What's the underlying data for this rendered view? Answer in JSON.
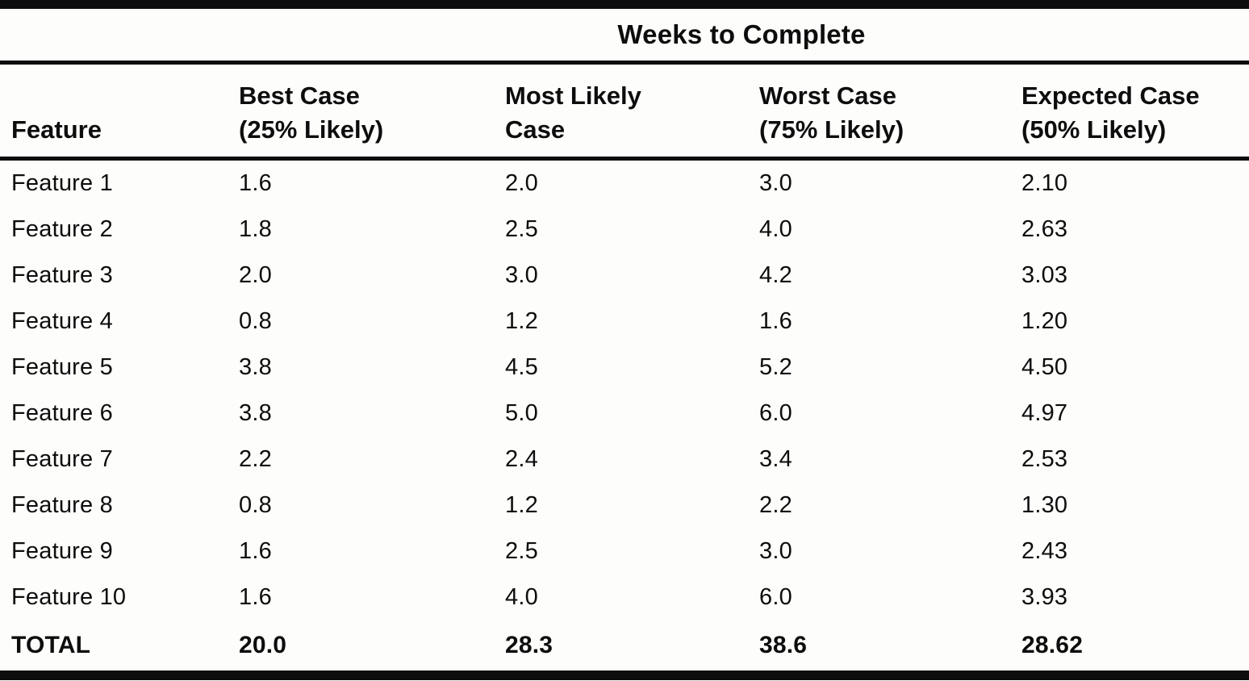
{
  "colors": {
    "ink": "#0d0d0d",
    "paper": "#fdfdfb"
  },
  "table": {
    "spanner_header": "Weeks to Complete",
    "columns": [
      {
        "label": "Feature",
        "sublabel": ""
      },
      {
        "label": "Best Case",
        "sublabel": "(25% Likely)"
      },
      {
        "label": "Most Likely",
        "sublabel": "Case"
      },
      {
        "label": "Worst Case",
        "sublabel": "(75% Likely)"
      },
      {
        "label": "Expected Case",
        "sublabel": "(50% Likely)"
      }
    ],
    "rows": [
      {
        "feature": "Feature 1",
        "best_case": "1.6",
        "most_likely": "2.0",
        "worst_case": "3.0",
        "expected": "2.10"
      },
      {
        "feature": "Feature 2",
        "best_case": "1.8",
        "most_likely": "2.5",
        "worst_case": "4.0",
        "expected": "2.63"
      },
      {
        "feature": "Feature 3",
        "best_case": "2.0",
        "most_likely": "3.0",
        "worst_case": "4.2",
        "expected": "3.03"
      },
      {
        "feature": "Feature 4",
        "best_case": "0.8",
        "most_likely": "1.2",
        "worst_case": "1.6",
        "expected": "1.20"
      },
      {
        "feature": "Feature 5",
        "best_case": "3.8",
        "most_likely": "4.5",
        "worst_case": "5.2",
        "expected": "4.50"
      },
      {
        "feature": "Feature 6",
        "best_case": "3.8",
        "most_likely": "5.0",
        "worst_case": "6.0",
        "expected": "4.97"
      },
      {
        "feature": "Feature 7",
        "best_case": "2.2",
        "most_likely": "2.4",
        "worst_case": "3.4",
        "expected": "2.53"
      },
      {
        "feature": "Feature 8",
        "best_case": "0.8",
        "most_likely": "1.2",
        "worst_case": "2.2",
        "expected": "1.30"
      },
      {
        "feature": "Feature 9",
        "best_case": "1.6",
        "most_likely": "2.5",
        "worst_case": "3.0",
        "expected": "2.43"
      },
      {
        "feature": "Feature 10",
        "best_case": "1.6",
        "most_likely": "4.0",
        "worst_case": "6.0",
        "expected": "3.93"
      }
    ],
    "total_row": {
      "feature": "TOTAL",
      "best_case": "20.0",
      "most_likely": "28.3",
      "worst_case": "38.6",
      "expected": "28.62"
    }
  }
}
